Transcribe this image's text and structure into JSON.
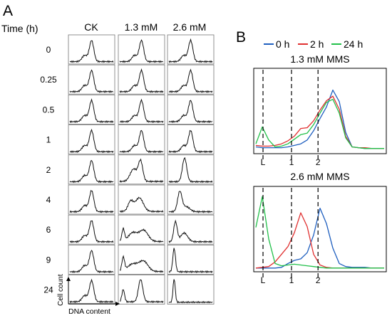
{
  "panel_a": {
    "label": "A",
    "time_header": "Time (h)",
    "columns": [
      "CK",
      "1.3 mM",
      "2.6 mM"
    ],
    "rows": [
      "0",
      "0.25",
      "0.5",
      "1",
      "2",
      "4",
      "6",
      "9",
      "24"
    ],
    "y_axis_label": "Cell count",
    "x_axis_label": "DNA content"
  },
  "panel_b": {
    "label": "B",
    "legend": [
      {
        "name": "0 h",
        "color": "#1f5fbf"
      },
      {
        "name": "2 h",
        "color": "#e03030"
      },
      {
        "name": "24 h",
        "color": "#22c04a"
      }
    ],
    "tick_labels": [
      "L",
      "1",
      "2"
    ]
  },
  "chart_data": [
    {
      "type": "line",
      "title": "1.3 mM MMS",
      "x_ticks": [
        "L",
        "1",
        "2"
      ],
      "x": [
        0.0,
        0.05,
        0.1,
        0.15,
        0.2,
        0.25,
        0.3,
        0.35,
        0.4,
        0.45,
        0.5,
        0.55,
        0.6,
        0.65,
        0.7,
        0.75,
        0.8,
        0.85,
        0.9,
        0.95,
        1.0
      ],
      "series": [
        {
          "name": "0 h",
          "color": "#1f5fbf",
          "values": [
            0.06,
            0.05,
            0.05,
            0.05,
            0.05,
            0.06,
            0.08,
            0.1,
            0.15,
            0.27,
            0.43,
            0.58,
            0.8,
            0.65,
            0.25,
            0.06,
            0.05,
            0.04,
            0.04,
            0.04,
            0.04
          ]
        },
        {
          "name": "2 h",
          "color": "#e03030",
          "values": [
            0.08,
            0.07,
            0.07,
            0.08,
            0.1,
            0.14,
            0.2,
            0.3,
            0.31,
            0.4,
            0.54,
            0.66,
            0.72,
            0.55,
            0.2,
            0.06,
            0.05,
            0.05,
            0.04,
            0.04,
            0.04
          ]
        },
        {
          "name": "24 h",
          "color": "#22c04a",
          "values": [
            0.1,
            0.32,
            0.15,
            0.06,
            0.07,
            0.1,
            0.16,
            0.22,
            0.24,
            0.35,
            0.5,
            0.64,
            0.68,
            0.5,
            0.18,
            0.06,
            0.05,
            0.04,
            0.04,
            0.04,
            0.04
          ]
        }
      ]
    },
    {
      "type": "line",
      "title": "2.6 mM MMS",
      "x_ticks": [
        "L",
        "1",
        "2"
      ],
      "x": [
        0.0,
        0.05,
        0.1,
        0.15,
        0.2,
        0.25,
        0.3,
        0.35,
        0.4,
        0.45,
        0.5,
        0.55,
        0.6,
        0.65,
        0.7,
        0.75,
        0.8,
        0.85,
        0.9,
        0.95,
        1.0
      ],
      "series": [
        {
          "name": "0 h",
          "color": "#1f5fbf",
          "values": [
            0.02,
            0.02,
            0.02,
            0.02,
            0.03,
            0.08,
            0.12,
            0.14,
            0.22,
            0.45,
            0.8,
            0.6,
            0.28,
            0.08,
            0.04,
            0.03,
            0.03,
            0.03,
            0.02,
            0.02,
            0.02
          ]
        },
        {
          "name": "2 h",
          "color": "#e03030",
          "values": [
            0.02,
            0.03,
            0.04,
            0.1,
            0.2,
            0.3,
            0.48,
            0.74,
            0.56,
            0.2,
            0.06,
            0.03,
            0.02,
            0.02,
            0.02,
            0.02,
            0.02,
            0.02,
            0.02,
            0.02,
            0.02
          ]
        },
        {
          "name": "24 h",
          "color": "#22c04a",
          "values": [
            0.55,
            0.95,
            0.4,
            0.08,
            0.05,
            0.06,
            0.07,
            0.06,
            0.05,
            0.04,
            0.03,
            0.02,
            0.02,
            0.02,
            0.02,
            0.02,
            0.02,
            0.02,
            0.02,
            0.02,
            0.02
          ]
        }
      ]
    }
  ]
}
